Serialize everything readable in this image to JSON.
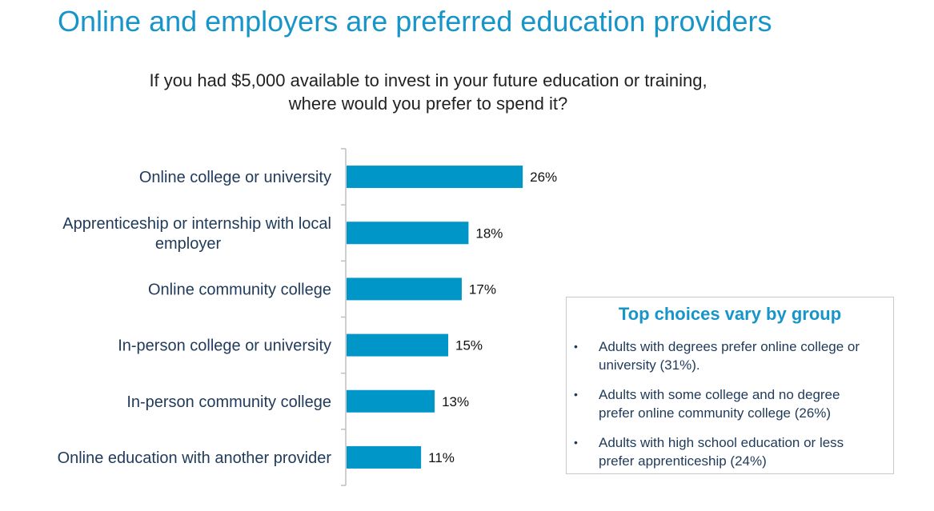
{
  "title": "Online and employers are preferred education providers",
  "question": {
    "line1": "If you had $5,000 available to invest in your future education or training,",
    "line2": "where would you prefer to spend it?"
  },
  "chart_data": {
    "type": "bar",
    "orientation": "horizontal",
    "categories": [
      [
        "Online college or university"
      ],
      [
        "Apprenticeship or internship with local",
        "employer"
      ],
      [
        "Online community college"
      ],
      [
        "In-person college or university"
      ],
      [
        "In-person community college"
      ],
      [
        "Online education with another provider"
      ]
    ],
    "values": [
      26,
      18,
      17,
      15,
      13,
      11
    ],
    "value_labels": [
      "26%",
      "18%",
      "17%",
      "15%",
      "13%",
      "11%"
    ],
    "unit": "%",
    "xlim": [
      0,
      30
    ],
    "grid": false,
    "color": "#0096c8"
  },
  "callout": {
    "title": "Top choices vary by group",
    "bullet_symbol": "•",
    "bullets": [
      [
        "Adults with degrees prefer online college or",
        "university (31%)."
      ],
      [
        "Adults with some college and no degree",
        "prefer online community college (26%)"
      ],
      [
        "Adults with high school education or less",
        "prefer apprenticeship (24%)"
      ]
    ]
  }
}
